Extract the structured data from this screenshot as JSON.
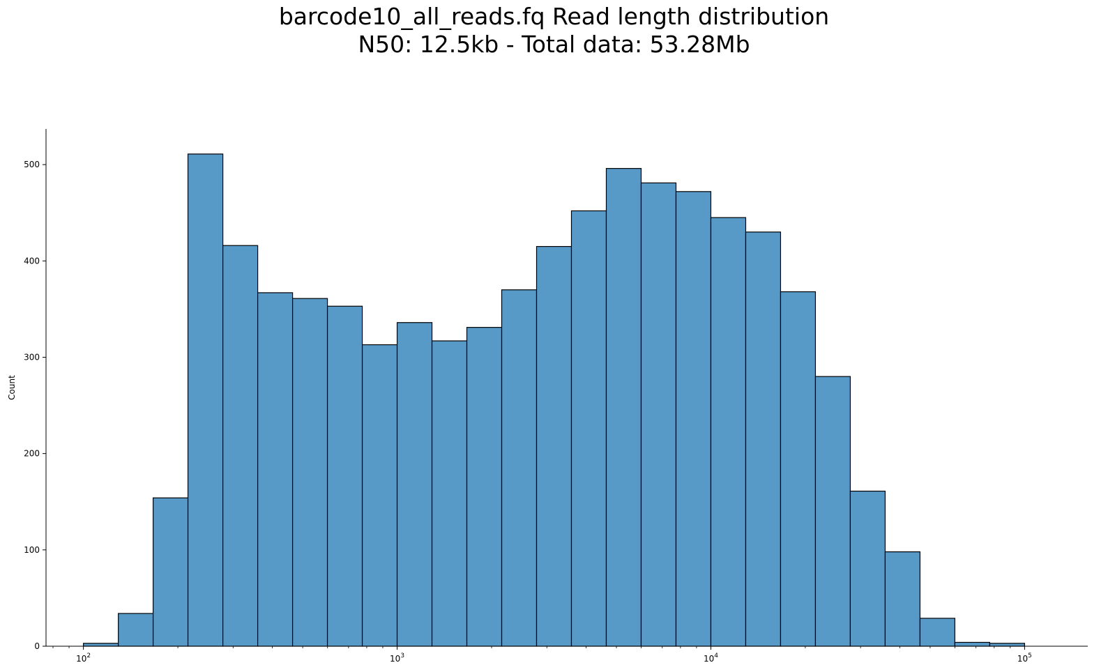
{
  "chart_data": {
    "type": "bar",
    "title": "barcode10_all_reads.fq Read length distribution",
    "subtitle": "N50: 12.5kb - Total data: 53.28Mb",
    "xlabel": "",
    "ylabel": "Count",
    "x_scale": "log",
    "xlim": [
      76,
      159000
    ],
    "ylim": [
      0,
      537
    ],
    "grid": false,
    "x_ticks": [
      {
        "value": 100,
        "label": "10",
        "exp": "2"
      },
      {
        "value": 1000,
        "label": "10",
        "exp": "3"
      },
      {
        "value": 10000,
        "label": "10",
        "exp": "4"
      },
      {
        "value": 100000,
        "label": "10",
        "exp": "5"
      }
    ],
    "y_ticks": [
      0,
      100,
      200,
      300,
      400,
      500
    ],
    "bin_edges": [
      100,
      129.2,
      166.8,
      215.4,
      278.3,
      359.4,
      464.2,
      599.5,
      774.3,
      1000,
      1291.5,
      1668.1,
      2154.4,
      2782.6,
      3593.8,
      4641.6,
      5994.8,
      7742.6,
      10000,
      12915.5,
      16681,
      21544.3,
      27825.6,
      35938.1,
      46415.9,
      59948.4,
      77426.4,
      100000
    ],
    "counts": [
      3,
      34,
      154,
      511,
      416,
      367,
      361,
      353,
      313,
      336,
      317,
      331,
      370,
      415,
      452,
      496,
      481,
      472,
      445,
      430,
      368,
      280,
      161,
      98,
      29,
      4,
      3
    ],
    "bar_color": "#5799c7",
    "edge_color": "#000000"
  }
}
